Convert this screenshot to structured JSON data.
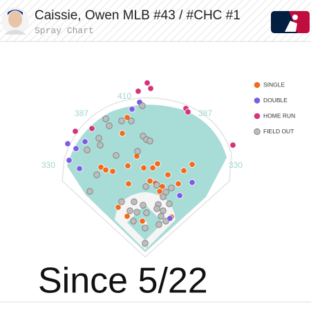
{
  "header": {
    "title": "Caissie, Owen MLB #43 / #CHC #1",
    "subtitle": "Spray Chart"
  },
  "chart_data": {
    "type": "scatter",
    "annotations": [
      "410",
      "387",
      "387",
      "330",
      "330"
    ],
    "xlim": [
      -420,
      480
    ],
    "ylim": [
      -96,
      544
    ],
    "series": [
      {
        "name": "SINGLE",
        "color": "#f26b1d",
        "x": [
          -52,
          -66,
          -24,
          -128,
          -114,
          -94,
          -50,
          -4,
          22,
          36,
          66,
          112,
          136,
          -48,
          14,
          30,
          50,
          96,
          42,
          -78,
          -52,
          -8,
          76
        ],
        "y": [
          364,
          318,
          252,
          220,
          212,
          208,
          224,
          218,
          218,
          230,
          198,
          210,
          228,
          172,
          180,
          174,
          164,
          172,
          150,
          104,
          78,
          64,
          76
        ]
      },
      {
        "name": "DOUBLE",
        "color": "#7b5ce6",
        "x": [
          -38,
          -16,
          -174,
          -224,
          -200,
          -220,
          -190,
          136,
          100,
          72
        ],
        "y": [
          388,
          408,
          294,
          288,
          274,
          240,
          216,
          176,
          138,
          72
        ]
      },
      {
        "name": "HOME RUN",
        "color": "#d6337a",
        "x": [
          -20,
          6,
          16,
          -154,
          -202,
          118,
          124,
          254
        ],
        "y": [
          440,
          464,
          448,
          332,
          324,
          390,
          380,
          284
        ]
      },
      {
        "name": "FIELD OUT",
        "color": "#bdbdbd",
        "x": [
          -8,
          -114,
          -104,
          -68,
          -40,
          -134,
          -130,
          -168,
          -84,
          -6,
          4,
          -22,
          14,
          -140,
          -160,
          2,
          34,
          60,
          76,
          52,
          70,
          38,
          -6,
          -32,
          -68,
          -24,
          4,
          34,
          52,
          46,
          60,
          40,
          -34,
          0,
          0,
          -44
        ],
        "y": [
          398,
          360,
          340,
          354,
          354,
          304,
          284,
          270,
          254,
          310,
          300,
          266,
          296,
          198,
          150,
          164,
          168,
          148,
          160,
          134,
          114,
          112,
          110,
          120,
          120,
          90,
          88,
          100,
          94,
          78,
          64,
          54,
          64,
          44,
          0,
          94
        ]
      }
    ]
  },
  "caption": "Since 5/22"
}
